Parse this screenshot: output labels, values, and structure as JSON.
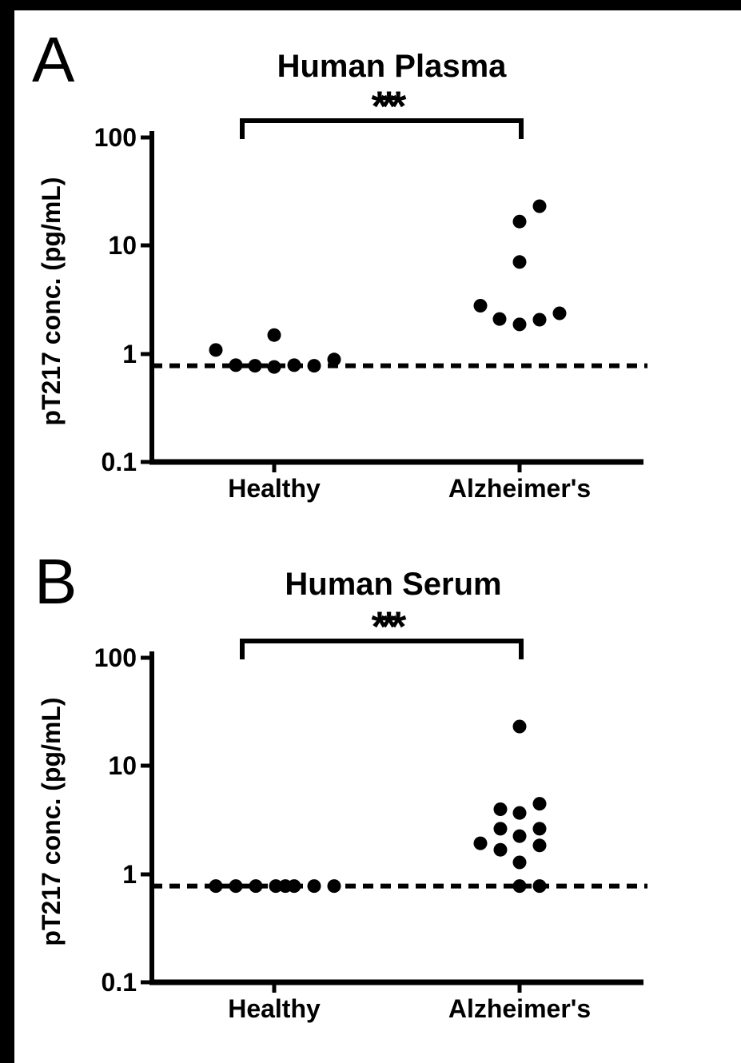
{
  "figure": {
    "background": "#ffffff",
    "ink_color": "#000000",
    "scan_border": "partial black border on top and left edges"
  },
  "chart_data": [
    {
      "panel_label": "A",
      "type": "scatter",
      "title": "Human Plasma",
      "ylabel": "pT217 conc. (pg/mL)",
      "xlabel": "",
      "yscale": "log",
      "ylim": [
        0.1,
        100
      ],
      "y_tick_labels": [
        "100",
        "10",
        "1",
        "0.1"
      ],
      "y_tick_values": [
        100,
        10,
        1,
        0.1
      ],
      "categories": [
        "Healthy",
        "Alzheimer's"
      ],
      "significance": "***",
      "significance_between": [
        "Healthy",
        "Alzheimer's"
      ],
      "detection_limit_line": 0.78,
      "grid": false,
      "legend": "none",
      "series": [
        {
          "name": "Healthy",
          "values": [
            1.09,
            0.79,
            0.78,
            1.5,
            0.76,
            0.79,
            0.78,
            0.89
          ],
          "jitter_dx": [
            -73,
            -48,
            -24,
            0,
            0,
            25,
            50,
            75
          ]
        },
        {
          "name": "Alzheimer's",
          "values": [
            2.8,
            2.11,
            1.88,
            16.8,
            7.1,
            23.3,
            2.08,
            2.38
          ],
          "jitter_dx": [
            -49,
            -25,
            0,
            0,
            0,
            25,
            25,
            50
          ]
        }
      ]
    },
    {
      "panel_label": "B",
      "type": "scatter",
      "title": "Human Serum",
      "ylabel": "pT217 conc. (pg/mL)",
      "xlabel": "",
      "yscale": "log",
      "ylim": [
        0.1,
        100
      ],
      "y_tick_labels": [
        "100",
        "10",
        "1",
        "0.1"
      ],
      "y_tick_values": [
        100,
        10,
        1,
        0.1
      ],
      "categories": [
        "Healthy",
        "Alzheimer's"
      ],
      "significance": "***",
      "significance_between": [
        "Healthy",
        "Alzheimer's"
      ],
      "detection_limit_line": 0.78,
      "grid": false,
      "legend": "none",
      "series": [
        {
          "name": "Healthy",
          "values": [
            0.78,
            0.78,
            0.78,
            0.78,
            0.78,
            0.78,
            0.78,
            0.78
          ],
          "jitter_dx": [
            -73,
            -48,
            -23,
            2,
            14,
            25,
            50,
            75
          ]
        },
        {
          "name": "Alzheimer's",
          "values": [
            1.94,
            4.0,
            2.64,
            1.69,
            23.3,
            3.7,
            2.26,
            1.29,
            0.78,
            4.5,
            2.64,
            1.85,
            0.78
          ],
          "jitter_dx": [
            -49,
            -24,
            -24,
            -24,
            0,
            0,
            0,
            0,
            0,
            25,
            25,
            25,
            25
          ]
        }
      ]
    }
  ]
}
